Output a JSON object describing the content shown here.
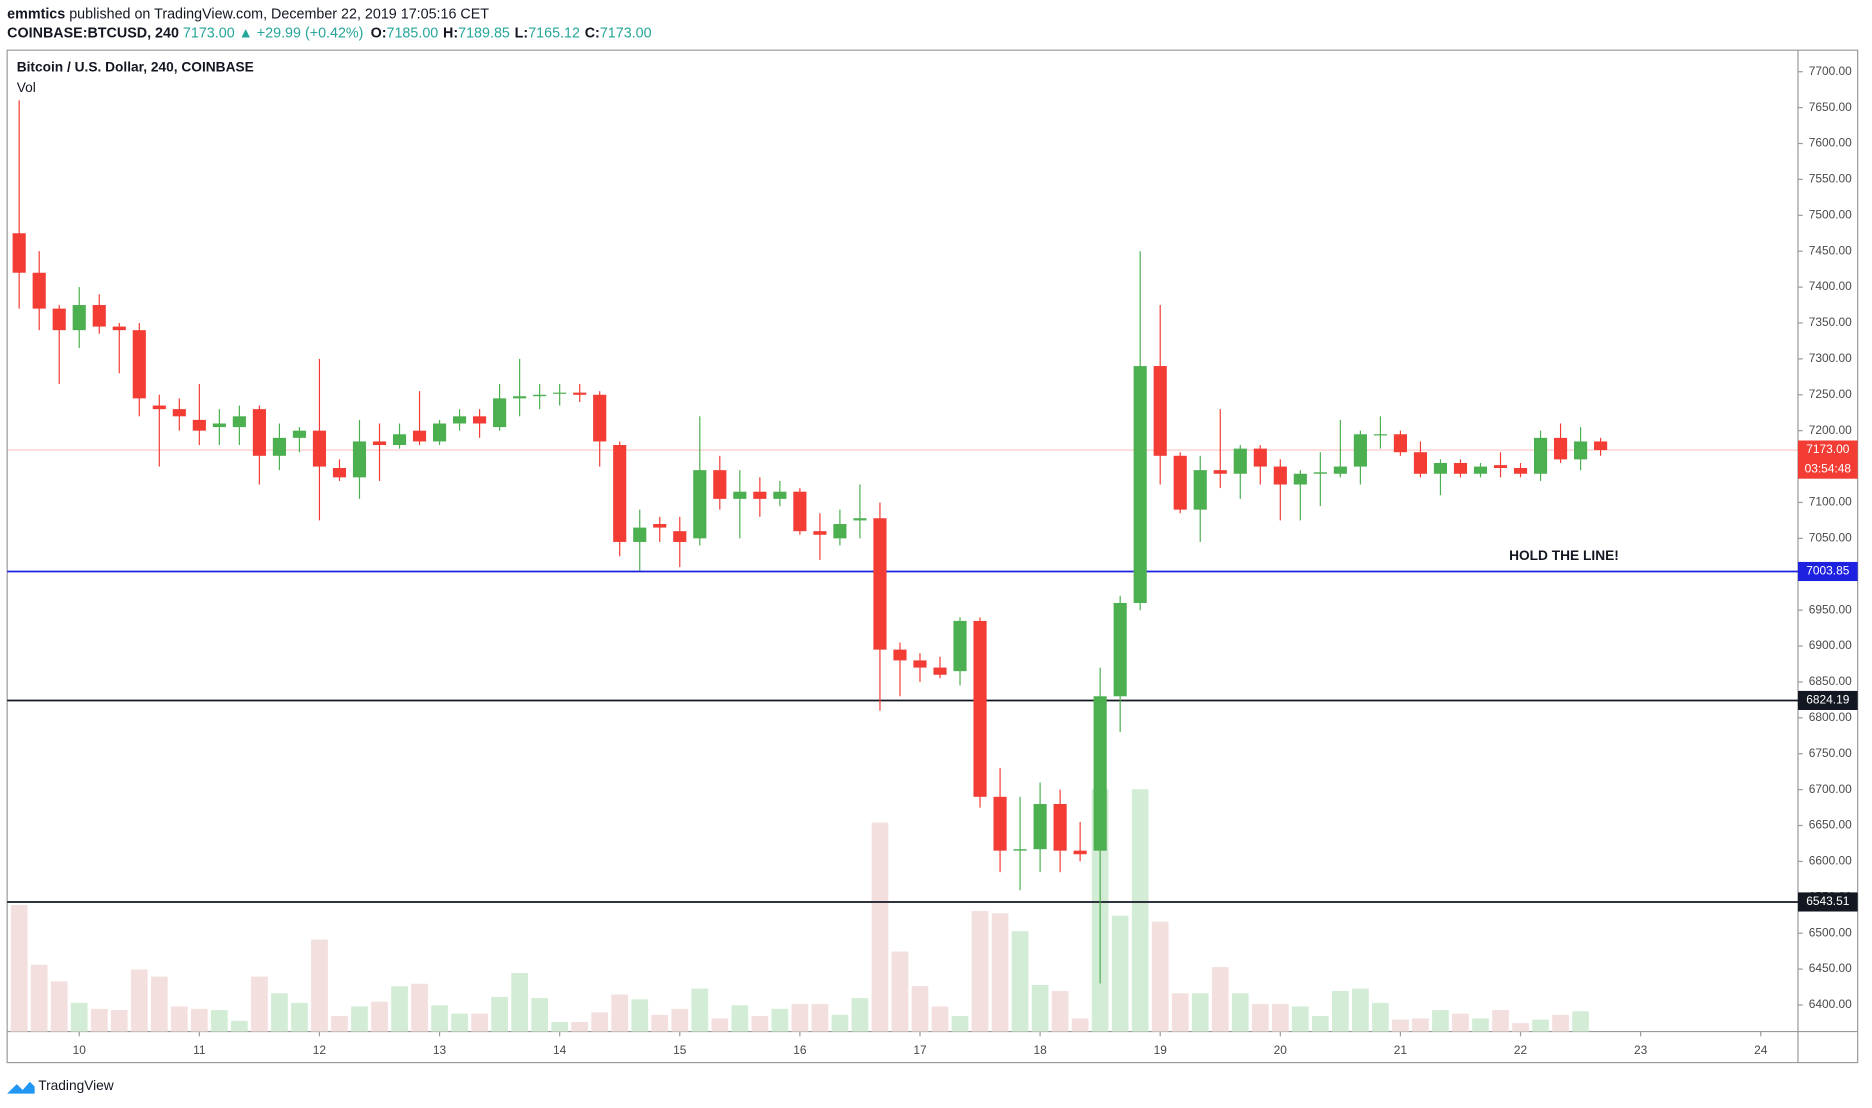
{
  "header": {
    "user": "emmtics",
    "published": "published on TradingView.com, December 22, 2019 17:05:16 CET",
    "symbol": "COINBASE:BTCUSD, 240",
    "price": "7173.00",
    "change": "▲ +29.99 (+0.42%)",
    "ohlc": [
      {
        "label": "O:",
        "value": "7185.00"
      },
      {
        "label": "H:",
        "value": "7189.85"
      },
      {
        "label": "L:",
        "value": "7165.12"
      },
      {
        "label": "C:",
        "value": "7173.00"
      }
    ]
  },
  "chart_data": {
    "type": "candlestick",
    "title": "Bitcoin / U.S. Dollar, 240, COINBASE",
    "volume_label": "Vol",
    "up_color": "#4caf50",
    "down_color": "#f23c34",
    "volume_up_color": "#d3ecd6",
    "volume_down_color": "#f2dfde",
    "x": [
      9.5,
      9.6667,
      9.8333,
      10,
      10.1667,
      10.3333,
      10.5,
      10.6667,
      10.8333,
      11,
      11.1667,
      11.3333,
      11.5,
      11.6667,
      11.8333,
      12,
      12.1667,
      12.3333,
      12.5,
      12.6667,
      12.8333,
      13,
      13.1667,
      13.3333,
      13.5,
      13.6667,
      13.8333,
      14,
      14.1667,
      14.3333,
      14.5,
      14.6667,
      14.8333,
      15,
      15.1667,
      15.3333,
      15.5,
      15.6667,
      15.8333,
      16,
      16.1667,
      16.3333,
      16.5,
      16.6667,
      16.8333,
      17,
      17.1667,
      17.3333,
      17.5,
      17.6667,
      17.8333,
      18,
      18.1667,
      18.3333,
      18.5,
      18.6667,
      18.8333,
      19,
      19.1667,
      19.3333,
      19.5,
      19.6667,
      19.8333,
      20,
      20.1667,
      20.3333,
      20.5,
      20.6667,
      20.8333,
      21,
      21.1667,
      21.3333,
      21.5,
      21.6667,
      21.8333,
      22,
      22.1667,
      22.3333,
      22.5,
      22.6667
    ],
    "open": [
      7475,
      7420,
      7370,
      7340,
      7375,
      7345,
      7340,
      7235,
      7230,
      7215,
      7205,
      7205,
      7230,
      7165,
      7190,
      7200,
      7148,
      7135,
      7185,
      7180,
      7200,
      7185,
      7210,
      7220,
      7205,
      7245,
      7248,
      7252,
      7253,
      7250,
      7180,
      7045,
      7070,
      7060,
      7050,
      7145,
      7105,
      7115,
      7105,
      7115,
      7060,
      7050,
      7075,
      7078,
      6895,
      6880,
      6870,
      6865,
      6935,
      6690,
      6615,
      6617,
      6680,
      6615,
      6615,
      6830,
      6960,
      7290,
      7165,
      7090,
      7145,
      7140,
      7175,
      7150,
      7125,
      7140,
      7140,
      7150,
      7195,
      7195,
      7170,
      7140,
      7155,
      7140,
      7152,
      7148,
      7140,
      7190,
      7160,
      7185
    ],
    "high": [
      7660,
      7450,
      7375,
      7400,
      7390,
      7350,
      7350,
      7250,
      7245,
      7265,
      7230,
      7235,
      7235,
      7210,
      7205,
      7300,
      7160,
      7215,
      7210,
      7210,
      7255,
      7215,
      7230,
      7230,
      7265,
      7300,
      7265,
      7265,
      7265,
      7255,
      7185,
      7090,
      7080,
      7080,
      7220,
      7165,
      7145,
      7135,
      7130,
      7120,
      7085,
      7090,
      7125,
      7100,
      6905,
      6890,
      6885,
      6940,
      6940,
      6730,
      6690,
      6710,
      6700,
      6655,
      6870,
      6970,
      7450,
      7375,
      7170,
      7165,
      7230,
      7180,
      7180,
      7160,
      7145,
      7170,
      7215,
      7200,
      7220,
      7200,
      7185,
      7160,
      7160,
      7155,
      7170,
      7155,
      7200,
      7210,
      7205,
      7190
    ],
    "low": [
      7370,
      7340,
      7265,
      7315,
      7335,
      7280,
      7220,
      7150,
      7200,
      7180,
      7180,
      7180,
      7125,
      7145,
      7170,
      7075,
      7130,
      7105,
      7130,
      7175,
      7180,
      7180,
      7200,
      7190,
      7200,
      7220,
      7230,
      7235,
      7240,
      7150,
      7025,
      7005,
      7045,
      7010,
      7040,
      7090,
      7050,
      7080,
      7095,
      7055,
      7020,
      7040,
      7050,
      6810,
      6830,
      6850,
      6855,
      6845,
      6675,
      6585,
      6560,
      6585,
      6585,
      6600,
      6430,
      6780,
      6950,
      7125,
      7085,
      7045,
      7120,
      7105,
      7125,
      7075,
      7075,
      7095,
      7135,
      7125,
      7175,
      7165,
      7135,
      7110,
      7135,
      7135,
      7135,
      7135,
      7130,
      7155,
      7145,
      7165
    ],
    "close": [
      7420,
      7370,
      7340,
      7375,
      7345,
      7340,
      7245,
      7230,
      7220,
      7200,
      7210,
      7220,
      7165,
      7190,
      7200,
      7150,
      7135,
      7185,
      7180,
      7195,
      7185,
      7210,
      7220,
      7210,
      7245,
      7248,
      7250,
      7253,
      7250,
      7185,
      7045,
      7065,
      7065,
      7045,
      7145,
      7105,
      7115,
      7105,
      7115,
      7060,
      7055,
      7070,
      7078,
      6895,
      6880,
      6870,
      6860,
      6935,
      6690,
      6615,
      6617,
      6680,
      6615,
      6610,
      6830,
      6960,
      7290,
      7165,
      7090,
      7145,
      7140,
      7175,
      7150,
      7125,
      7140,
      7142,
      7150,
      7195,
      7195,
      7170,
      7140,
      7155,
      7140,
      7150,
      7148,
      7140,
      7190,
      7160,
      7185,
      7173
    ],
    "volume": [
      106,
      56,
      42,
      24,
      19,
      18,
      52,
      46,
      21,
      19,
      18,
      9,
      46,
      32,
      24,
      77,
      13,
      21,
      25,
      38,
      40,
      22,
      15,
      15,
      29,
      49,
      28,
      8,
      8,
      16,
      31,
      27,
      14,
      19,
      36,
      11,
      22,
      13,
      19,
      23,
      23,
      14,
      28,
      175,
      67,
      38,
      21,
      13,
      101,
      99,
      84,
      39,
      34,
      11,
      203,
      97,
      203,
      92,
      32,
      32,
      54,
      32,
      23,
      23,
      21,
      13,
      34,
      36,
      24,
      10,
      11,
      18,
      15,
      11,
      18,
      7,
      10,
      14,
      17,
      null
    ],
    "xlim": [
      9.4,
      24.31
    ],
    "xticks": [
      10,
      11,
      12,
      13,
      14,
      15,
      16,
      17,
      18,
      19,
      20,
      21,
      22,
      23,
      24
    ],
    "ylim": [
      6363,
      7730
    ],
    "yticks": [
      {
        "value": 6400,
        "label": "6400.00"
      },
      {
        "value": 6450,
        "label": "6450.00"
      },
      {
        "value": 6500,
        "label": "6500.00"
      },
      {
        "value": 6550,
        "label": "6550.00"
      },
      {
        "value": 6600,
        "label": "6600.00"
      },
      {
        "value": 6650,
        "label": "6650.00"
      },
      {
        "value": 6700,
        "label": "6700.00"
      },
      {
        "value": 6750,
        "label": "6750.00"
      },
      {
        "value": 6800,
        "label": "6800.00"
      },
      {
        "value": 6850,
        "label": "6850.00"
      },
      {
        "value": 6900,
        "label": "6900.00"
      },
      {
        "value": 6950,
        "label": "6950.00"
      },
      {
        "value": 7000,
        "label": "7000.00"
      },
      {
        "value": 7050,
        "label": "7050.00"
      },
      {
        "value": 7100,
        "label": "7100.00"
      },
      {
        "value": 7150,
        "label": "7150.00"
      },
      {
        "value": 7200,
        "label": "7200.00"
      },
      {
        "value": 7250,
        "label": "7250.00"
      },
      {
        "value": 7300,
        "label": "7300.00"
      },
      {
        "value": 7350,
        "label": "7350.00"
      },
      {
        "value": 7400,
        "label": "7400.00"
      },
      {
        "value": 7450,
        "label": "7450.00"
      },
      {
        "value": 7500,
        "label": "7500.00"
      },
      {
        "value": 7550,
        "label": "7550.00"
      },
      {
        "value": 7600,
        "label": "7600.00"
      },
      {
        "value": 7650,
        "label": "7650.00"
      },
      {
        "value": 7700,
        "label": "7700.00"
      }
    ],
    "hlines": [
      {
        "value": 7003.85,
        "color": "#1e22e0"
      },
      {
        "value": 6824.19,
        "color": "#131722"
      },
      {
        "value": 6543.51,
        "color": "#131722"
      }
    ],
    "last_price": {
      "value": 7173,
      "label": "7173.00",
      "color": "#f23c34"
    },
    "countdown": "03:54:48",
    "annotation": "HOLD THE LINE!"
  },
  "footer": {
    "brand": "TradingView"
  }
}
